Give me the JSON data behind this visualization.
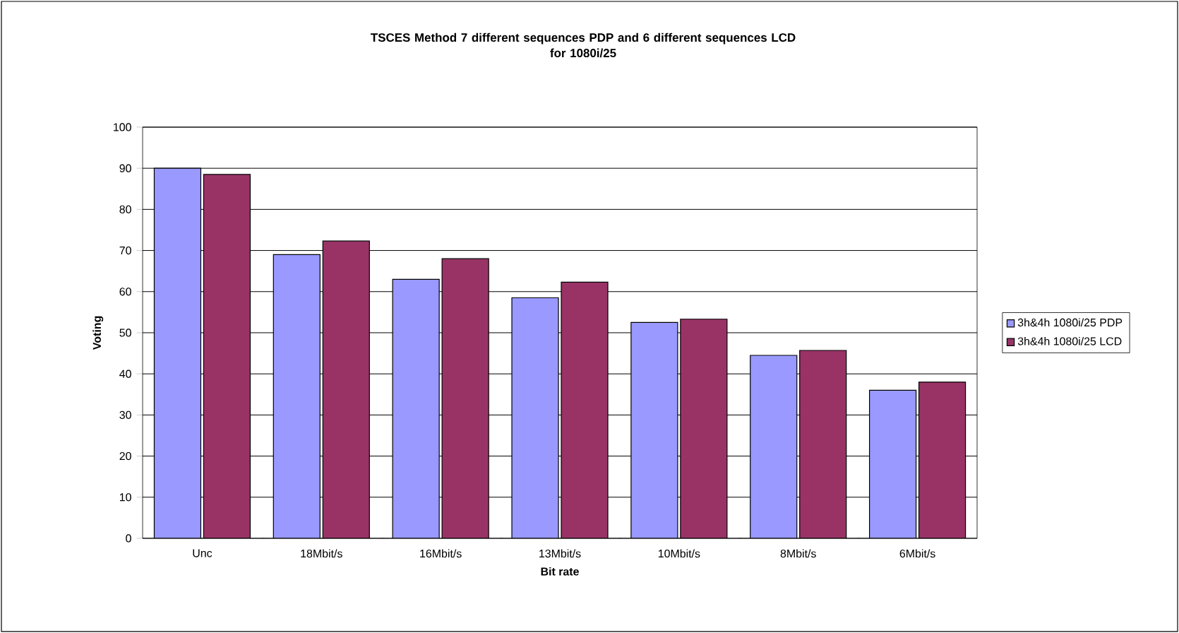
{
  "chart_data": {
    "type": "bar",
    "title": "TSCES Method 7 different sequences PDP and 6 different sequences LCD\nfor 1080i/25",
    "xlabel": "Bit rate",
    "ylabel": "Voting",
    "categories": [
      "Unc",
      "18Mbit/s",
      "16Mbit/s",
      "13Mbit/s",
      "10Mbit/s",
      "8Mbit/s",
      "6Mbit/s"
    ],
    "series": [
      {
        "name": "3h&4h 1080i/25 PDP",
        "color": "#9999ff",
        "values": [
          90,
          69,
          63,
          58.5,
          52.5,
          44.5,
          36
        ]
      },
      {
        "name": "3h&4h 1080i/25 LCD",
        "color": "#993366",
        "values": [
          88.5,
          72.3,
          68,
          62.3,
          53.3,
          45.7,
          38
        ]
      }
    ],
    "ylim": [
      0,
      100
    ],
    "yticks": [
      0,
      10,
      20,
      30,
      40,
      50,
      60,
      70,
      80,
      90,
      100
    ],
    "grid": "y",
    "legend": "right"
  }
}
